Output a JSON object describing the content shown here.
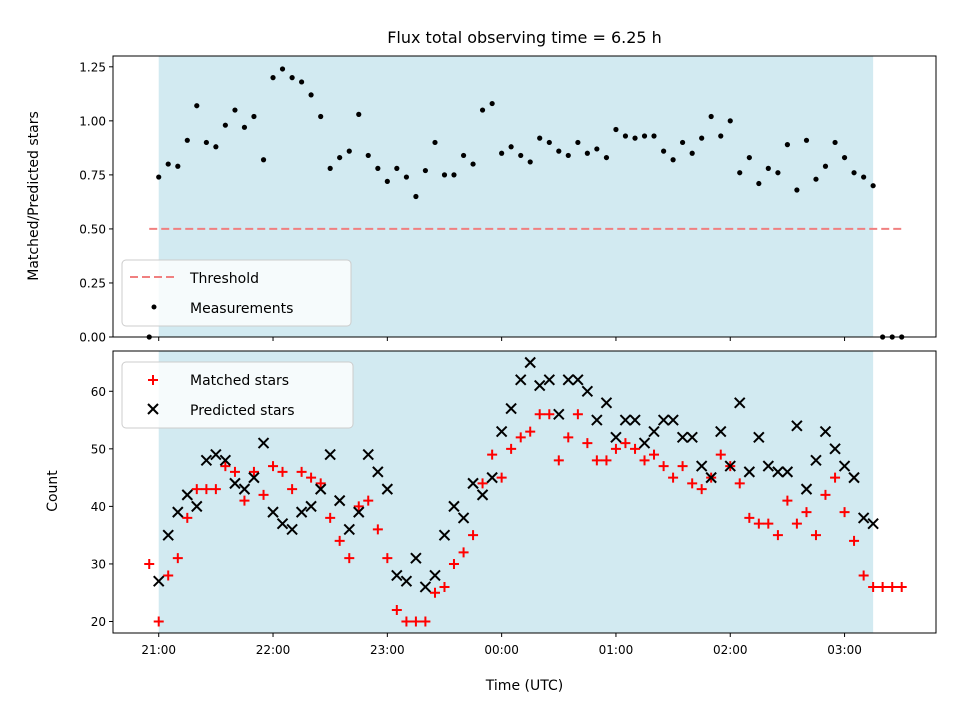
{
  "chart_data": [
    {
      "type": "scatter",
      "title": "Flux total observing time = 6.25 h",
      "xlabel": "",
      "ylabel": "Matched/Predicted stars",
      "ylim": [
        0,
        1.3
      ],
      "yticks": [
        0.0,
        0.25,
        0.5,
        0.75,
        1.0,
        1.25
      ],
      "ytick_labels": [
        "0.00",
        "0.25",
        "0.50",
        "0.75",
        "1.00",
        "1.25"
      ],
      "grid": false,
      "legend_position": "bottom-left",
      "shaded_span": {
        "start": 0.0,
        "end": 6.25,
        "color": "#add8e6"
      },
      "threshold": {
        "name": "Threshold",
        "y": 0.5,
        "x_start": -0.083,
        "x_end": 6.5,
        "color": "#f08080"
      },
      "series": [
        {
          "name": "Measurements",
          "marker": "dot",
          "color": "#000000",
          "x": [
            -0.083,
            0.0,
            0.083,
            0.167,
            0.25,
            0.333,
            0.417,
            0.5,
            0.583,
            0.667,
            0.75,
            0.833,
            0.917,
            1.0,
            1.083,
            1.167,
            1.25,
            1.333,
            1.417,
            1.5,
            1.583,
            1.667,
            1.75,
            1.833,
            1.917,
            2.0,
            2.083,
            2.167,
            2.25,
            2.333,
            2.417,
            2.5,
            2.583,
            2.667,
            2.75,
            2.833,
            2.917,
            3.0,
            3.083,
            3.167,
            3.25,
            3.333,
            3.417,
            3.5,
            3.583,
            3.667,
            3.75,
            3.833,
            3.917,
            4.0,
            4.083,
            4.167,
            4.25,
            4.333,
            4.417,
            4.5,
            4.583,
            4.667,
            4.75,
            4.833,
            4.917,
            5.0,
            5.083,
            5.167,
            5.25,
            5.333,
            5.417,
            5.5,
            5.583,
            5.667,
            5.75,
            5.833,
            5.917,
            6.0,
            6.083,
            6.167,
            6.25,
            6.333,
            6.417,
            6.5
          ],
          "y": [
            0.0,
            0.74,
            0.8,
            0.79,
            0.91,
            1.07,
            0.9,
            0.88,
            0.98,
            1.05,
            0.97,
            1.02,
            0.82,
            1.2,
            1.24,
            1.2,
            1.18,
            1.12,
            1.02,
            0.78,
            0.83,
            0.86,
            1.03,
            0.84,
            0.78,
            0.72,
            0.78,
            0.74,
            0.65,
            0.77,
            0.9,
            0.75,
            0.75,
            0.84,
            0.8,
            1.05,
            1.08,
            0.85,
            0.88,
            0.84,
            0.81,
            0.92,
            0.9,
            0.86,
            0.84,
            0.9,
            0.85,
            0.87,
            0.83,
            0.96,
            0.93,
            0.92,
            0.93,
            0.93,
            0.86,
            0.82,
            0.9,
            0.85,
            0.92,
            1.02,
            0.93,
            1.0,
            0.76,
            0.83,
            0.71,
            0.78,
            0.76,
            0.89,
            0.68,
            0.91,
            0.73,
            0.79,
            0.9,
            0.83,
            0.76,
            0.74,
            0.7,
            0.0,
            0.0,
            0.0
          ]
        }
      ]
    },
    {
      "type": "scatter",
      "title": "",
      "xlabel": "Time (UTC)",
      "ylabel": "Count",
      "xlim": [
        -0.4,
        6.8
      ],
      "ylim": [
        18,
        67
      ],
      "xticks": [
        0,
        1,
        2,
        3,
        4,
        5,
        6
      ],
      "xtick_labels": [
        "21:00",
        "22:00",
        "23:00",
        "00:00",
        "01:00",
        "02:00",
        "03:00"
      ],
      "yticks": [
        20,
        30,
        40,
        50,
        60
      ],
      "ytick_labels": [
        "20",
        "30",
        "40",
        "50",
        "60"
      ],
      "grid": false,
      "legend_position": "top-left",
      "shaded_span": {
        "start": 0.0,
        "end": 6.25,
        "color": "#add8e6"
      },
      "series": [
        {
          "name": "Matched stars",
          "marker": "plus",
          "color": "#ff0000",
          "x": [
            -0.083,
            0.0,
            0.083,
            0.167,
            0.25,
            0.333,
            0.417,
            0.5,
            0.583,
            0.667,
            0.75,
            0.833,
            0.917,
            1.0,
            1.083,
            1.167,
            1.25,
            1.333,
            1.417,
            1.5,
            1.583,
            1.667,
            1.75,
            1.833,
            1.917,
            2.0,
            2.083,
            2.167,
            2.25,
            2.333,
            2.417,
            2.5,
            2.583,
            2.667,
            2.75,
            2.833,
            2.917,
            3.0,
            3.083,
            3.167,
            3.25,
            3.333,
            3.417,
            3.5,
            3.583,
            3.667,
            3.75,
            3.833,
            3.917,
            4.0,
            4.083,
            4.167,
            4.25,
            4.333,
            4.417,
            4.5,
            4.583,
            4.667,
            4.75,
            4.833,
            4.917,
            5.0,
            5.083,
            5.167,
            5.25,
            5.333,
            5.417,
            5.5,
            5.583,
            5.667,
            5.75,
            5.833,
            5.917,
            6.0,
            6.083,
            6.167,
            6.25,
            6.333,
            6.417,
            6.5
          ],
          "y": [
            30,
            20,
            28,
            31,
            38,
            43,
            43,
            43,
            47,
            46,
            41,
            46,
            42,
            47,
            46,
            43,
            46,
            45,
            44,
            38,
            34,
            31,
            40,
            41,
            36,
            31,
            22,
            20,
            20,
            20,
            25,
            26,
            30,
            32,
            35,
            44,
            49,
            45,
            50,
            52,
            53,
            56,
            56,
            48,
            52,
            56,
            51,
            48,
            48,
            50,
            51,
            50,
            48,
            49,
            47,
            45,
            47,
            44,
            43,
            45,
            49,
            47,
            44,
            38,
            37,
            37,
            35,
            41,
            37,
            39,
            35,
            42,
            45,
            39,
            34,
            28,
            26,
            26,
            26,
            26
          ]
        },
        {
          "name": "Predicted stars",
          "marker": "x",
          "color": "#000000",
          "x": [
            0.0,
            0.083,
            0.167,
            0.25,
            0.333,
            0.417,
            0.5,
            0.583,
            0.667,
            0.75,
            0.833,
            0.917,
            1.0,
            1.083,
            1.167,
            1.25,
            1.333,
            1.417,
            1.5,
            1.583,
            1.667,
            1.75,
            1.833,
            1.917,
            2.0,
            2.083,
            2.167,
            2.25,
            2.333,
            2.417,
            2.5,
            2.583,
            2.667,
            2.75,
            2.833,
            2.917,
            3.0,
            3.083,
            3.167,
            3.25,
            3.333,
            3.417,
            3.5,
            3.583,
            3.667,
            3.75,
            3.833,
            3.917,
            4.0,
            4.083,
            4.167,
            4.25,
            4.333,
            4.417,
            4.5,
            4.583,
            4.667,
            4.75,
            4.833,
            4.917,
            5.0,
            5.083,
            5.167,
            5.25,
            5.333,
            5.417,
            5.5,
            5.583,
            5.667,
            5.75,
            5.833,
            5.917,
            6.0,
            6.083,
            6.167,
            6.25
          ],
          "y": [
            27,
            35,
            39,
            42,
            40,
            48,
            49,
            48,
            44,
            43,
            45,
            51,
            39,
            37,
            36,
            39,
            40,
            43,
            49,
            41,
            36,
            39,
            49,
            46,
            43,
            28,
            27,
            31,
            26,
            28,
            35,
            40,
            38,
            44,
            42,
            45,
            53,
            57,
            62,
            65,
            61,
            62,
            56,
            62,
            62,
            60,
            55,
            58,
            52,
            55,
            55,
            51,
            53,
            55,
            55,
            52,
            52,
            47,
            45,
            53,
            47,
            58,
            46,
            52,
            47,
            46,
            46,
            54,
            43,
            48,
            53,
            50,
            47,
            45,
            38,
            37
          ]
        }
      ]
    }
  ]
}
